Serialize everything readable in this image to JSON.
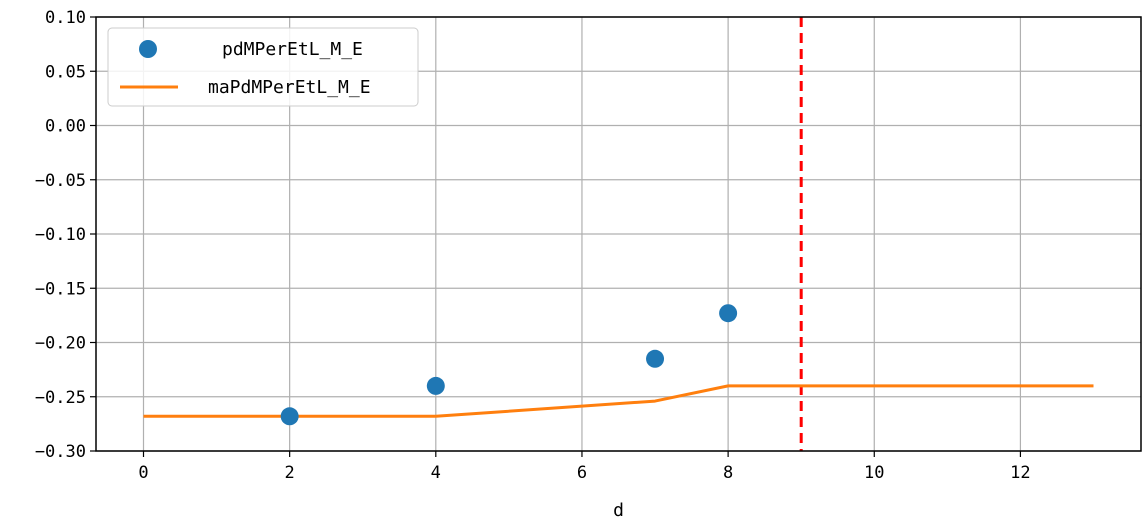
{
  "chart_data": {
    "type": "line",
    "title": "",
    "xlabel": "d",
    "ylabel": "",
    "xlim": [
      -0.65,
      13.65
    ],
    "ylim": [
      -0.3,
      0.1
    ],
    "xticks": [
      0,
      2,
      4,
      6,
      8,
      10,
      12
    ],
    "yticks": [
      0.1,
      0.05,
      0.0,
      -0.05,
      -0.1,
      -0.15,
      -0.2,
      -0.25,
      -0.3
    ],
    "ytick_labels": [
      "0.10",
      "0.05",
      "0.00",
      "−0.05",
      "−0.10",
      "−0.15",
      "−0.20",
      "−0.25",
      "−0.30"
    ],
    "grid": true,
    "legend_position": "top-left",
    "series": [
      {
        "name": "pdMPerEtL_M_E",
        "kind": "scatter",
        "color": "#1f77b4",
        "points": [
          [
            2,
            -0.268
          ],
          [
            4,
            -0.24
          ],
          [
            7,
            -0.215
          ],
          [
            8,
            -0.173
          ]
        ]
      },
      {
        "name": "maPdMPerEtL_M_E",
        "kind": "line",
        "color": "#ff7f0e",
        "points": [
          [
            0,
            -0.268
          ],
          [
            4,
            -0.268
          ],
          [
            7,
            -0.254
          ],
          [
            8,
            -0.24
          ],
          [
            13,
            -0.24
          ]
        ]
      }
    ],
    "vlines": [
      {
        "x": 9,
        "color": "#ff0000",
        "style": "dashed"
      }
    ]
  }
}
